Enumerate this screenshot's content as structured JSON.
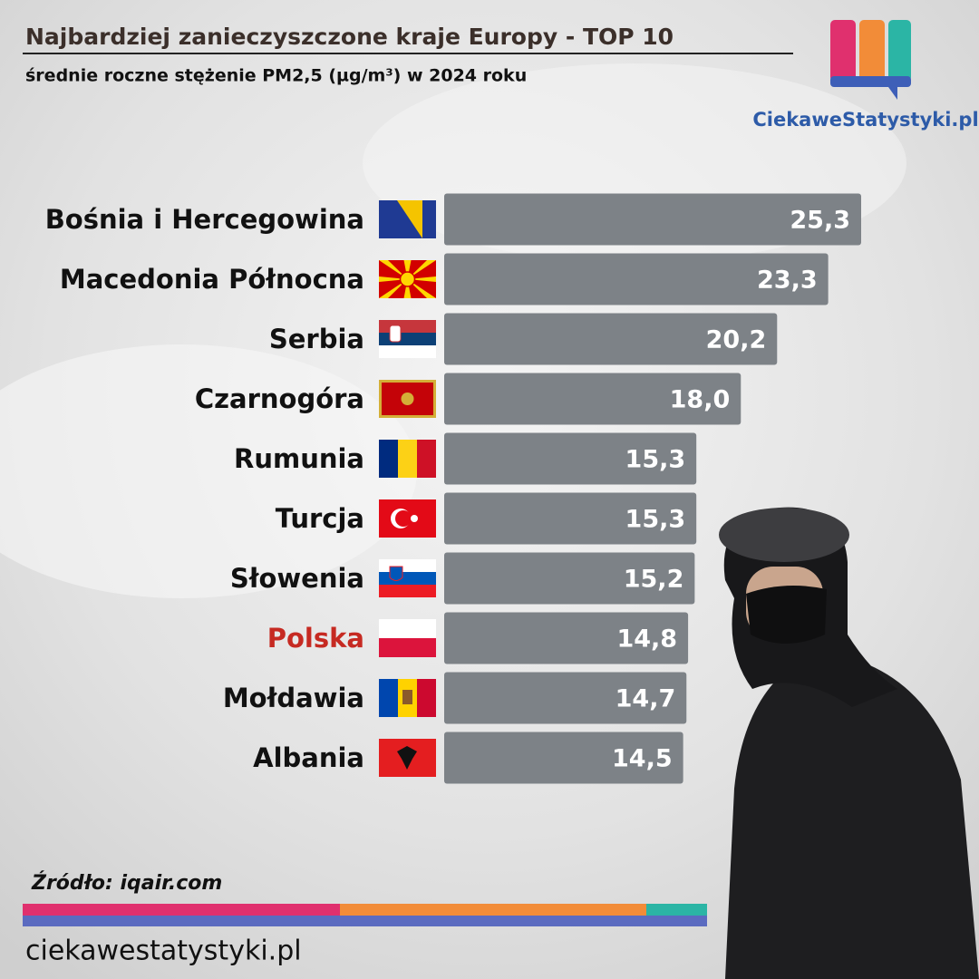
{
  "chart_data": {
    "type": "hbar",
    "title": "Najbardziej zanieczyszczone kraje Europy - TOP 10",
    "subtitle": "średnie roczne stężenie PM2,5 (µg/m³) w 2024 roku",
    "categories": [
      "Bośnia i Hercegowina",
      "Macedonia Północna",
      "Serbia",
      "Czarnogóra",
      "Rumunia",
      "Turcja",
      "Słowenia",
      "Polska",
      "Mołdawia",
      "Albania"
    ],
    "values": [
      25.3,
      23.3,
      20.2,
      18.0,
      15.3,
      15.3,
      15.2,
      14.8,
      14.7,
      14.5
    ],
    "value_labels": [
      "25,3",
      "23,3",
      "20,2",
      "18,0",
      "15,3",
      "15,3",
      "15,2",
      "14,8",
      "14,7",
      "14,5"
    ],
    "color": "#7d8287",
    "highlight": 7,
    "highlight_color": "#c62a22",
    "source": "Źródło: iqair.com",
    "logo": "CiekaweStatystyki.pl",
    "footer": "ciekawestatystyki.pl"
  }
}
